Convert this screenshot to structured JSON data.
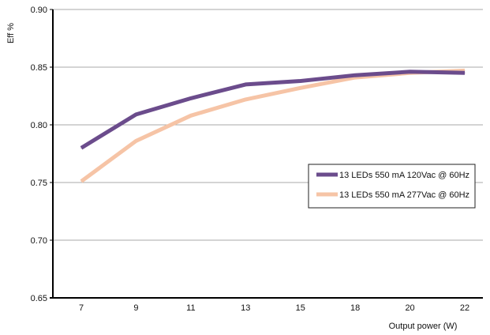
{
  "chart_data": {
    "type": "line",
    "categories": [
      "7",
      "9",
      "11",
      "13",
      "15",
      "18",
      "20",
      "22"
    ],
    "series": [
      {
        "name": "13 LEDs 550 mA 120Vac @ 60Hz",
        "color": "#6b4c8c",
        "values": [
          0.78,
          0.809,
          0.823,
          0.835,
          0.838,
          0.843,
          0.846,
          0.845
        ]
      },
      {
        "name": "13 LEDs 550 mA 277Vac @ 60Hz",
        "color": "#f6c4a6",
        "values": [
          0.751,
          0.786,
          0.808,
          0.822,
          0.832,
          0.841,
          0.845,
          0.847
        ]
      }
    ],
    "title": "",
    "xlabel": "Output power (W)",
    "ylabel": "Eff  %",
    "ylim": [
      0.65,
      0.9
    ],
    "yticks": [
      "0.65",
      "0.70",
      "0.75",
      "0.80",
      "0.85",
      "0.90"
    ],
    "grid": true,
    "legend_position": "center-right"
  }
}
